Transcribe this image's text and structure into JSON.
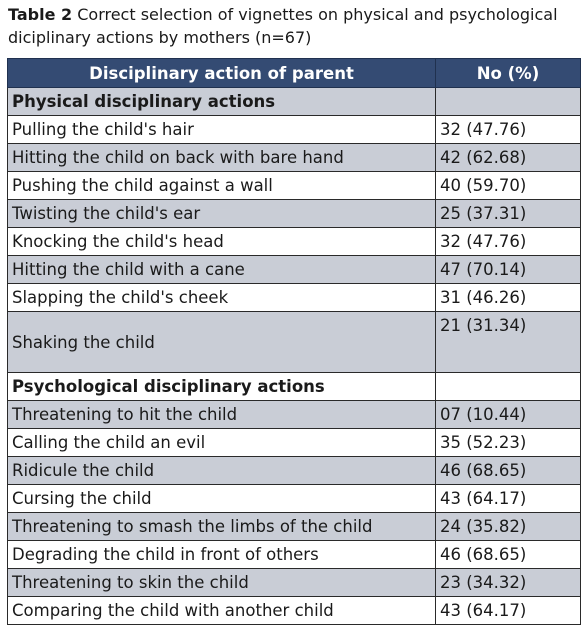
{
  "caption": {
    "label": "Table 2",
    "text": " Correct selection of vignettes on physical and psychological diciplinary actions by mothers (n=67)"
  },
  "table": {
    "headers": [
      "Disciplinary action of parent",
      "No (%)"
    ],
    "sections": [
      {
        "title": "Physical disciplinary actions",
        "rows": [
          {
            "action": "Pulling the child's hair",
            "value": "32 (47.76)"
          },
          {
            "action": "Hitting the child on back with bare hand",
            "value": "42 (62.68)"
          },
          {
            "action": "Pushing the child against a wall",
            "value": "40 (59.70)"
          },
          {
            "action": "Twisting the child's ear",
            "value": "25 (37.31)"
          },
          {
            "action": "Knocking the child's head",
            "value": "32 (47.76)"
          },
          {
            "action": "Hitting the child with a cane",
            "value": "47 (70.14)"
          },
          {
            "action": "Slapping the child's cheek",
            "value": "31 (46.26)"
          },
          {
            "action": "Shaking the child",
            "value": "21 (31.34)"
          }
        ]
      },
      {
        "title": "Psychological disciplinary actions",
        "rows": [
          {
            "action": "Threatening to hit the child",
            "value": "07 (10.44)"
          },
          {
            "action": "Calling the child an evil",
            "value": "35 (52.23)"
          },
          {
            "action": "Ridicule the child",
            "value": "46 (68.65)"
          },
          {
            "action": "Cursing the child",
            "value": "43 (64.17)"
          },
          {
            "action": "Threatening to smash the limbs of the child",
            "value": "24 (35.82)"
          },
          {
            "action": "Degrading the child in front of others",
            "value": "46 (68.65)"
          },
          {
            "action": "Threatening to skin the child",
            "value": "23 (34.32)"
          },
          {
            "action": "Comparing the child with another child",
            "value": "43 (64.17)"
          }
        ]
      }
    ]
  },
  "colors": {
    "header_bg": "#344b73",
    "header_text": "#ffffff",
    "shaded_row": "#c9cdd6",
    "white_row": "#ffffff"
  }
}
